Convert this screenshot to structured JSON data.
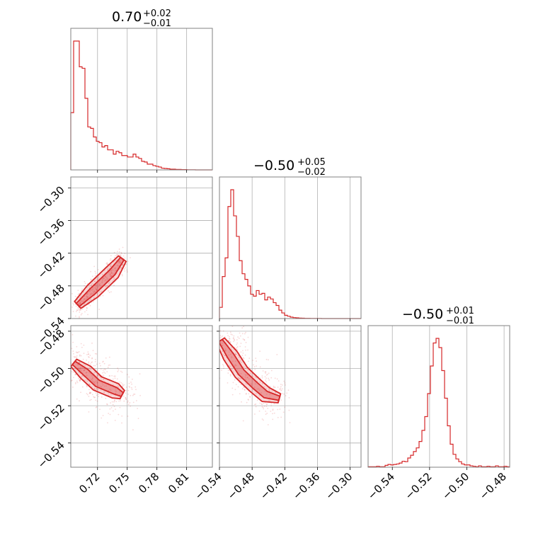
{
  "chart_data": {
    "type": "corner",
    "color": "#d62728",
    "parameters": [
      {
        "title_value": "0.70",
        "title_plus": "+0.02",
        "title_minus": "−0.01",
        "range": [
          0.693,
          0.836
        ],
        "ticks": [
          0.72,
          0.75,
          0.78,
          0.81
        ],
        "tick_labels": [
          "0.72",
          "0.75",
          "0.78",
          "0.81"
        ],
        "hist_edges_start": 0.693,
        "hist_edges_step": 0.00286,
        "hist_counts": [
          400,
          900,
          900,
          720,
          710,
          500,
          300,
          290,
          230,
          200,
          190,
          160,
          170,
          140,
          140,
          110,
          130,
          120,
          100,
          100,
          90,
          90,
          110,
          90,
          80,
          60,
          55,
          40,
          40,
          30,
          25,
          20,
          12,
          10,
          8,
          5,
          5,
          3,
          3,
          2,
          2,
          1,
          1,
          1,
          0,
          0,
          0,
          0,
          0,
          0
        ]
      },
      {
        "title_value": "−0.50",
        "title_plus": "+0.05",
        "title_minus": "−0.02",
        "range": [
          -0.54,
          -0.28
        ],
        "ticks": [
          -0.3,
          -0.36,
          -0.42,
          -0.48,
          -0.54
        ],
        "tick_labels": [
          "−0.30",
          "−0.36",
          "−0.42",
          "−0.48",
          "−0.54"
        ],
        "x_ticks": [
          -0.54,
          -0.48,
          -0.42,
          -0.36,
          -0.3
        ],
        "x_tick_labels": [
          "−0.54",
          "−0.48",
          "−0.42",
          "−0.36",
          "−0.30"
        ],
        "hist_edges_start": -0.54,
        "hist_edges_step": 0.0052,
        "hist_counts": [
          120,
          450,
          650,
          1200,
          1380,
          1100,
          880,
          620,
          480,
          420,
          350,
          260,
          240,
          300,
          260,
          270,
          200,
          230,
          210,
          170,
          140,
          90,
          60,
          35,
          25,
          15,
          10,
          8,
          5,
          4,
          2,
          2,
          1,
          1,
          1,
          1,
          0,
          0,
          0,
          0,
          0,
          0,
          0,
          0,
          0,
          0,
          0,
          0,
          0,
          0
        ]
      },
      {
        "title_value": "−0.50",
        "title_plus": "+0.01",
        "title_minus": "−0.01",
        "range": [
          -0.553,
          -0.477
        ],
        "ticks": [
          -0.48,
          -0.5,
          -0.52,
          -0.54
        ],
        "tick_labels": [
          "−0.48",
          "−0.50",
          "−0.52",
          "−0.54"
        ],
        "x_ticks": [
          -0.54,
          -0.52,
          -0.5,
          -0.48
        ],
        "x_tick_labels": [
          "−0.54",
          "−0.52",
          "−0.50",
          "−0.48"
        ],
        "hist_edges_start": -0.553,
        "hist_edges_step": 0.00152,
        "hist_counts": [
          5,
          5,
          5,
          10,
          5,
          5,
          20,
          30,
          25,
          30,
          35,
          45,
          65,
          60,
          100,
          130,
          170,
          210,
          280,
          400,
          550,
          800,
          1100,
          1350,
          1400,
          1300,
          1050,
          750,
          450,
          250,
          140,
          90,
          60,
          35,
          25,
          25,
          15,
          10,
          5,
          15,
          5,
          5,
          10,
          5,
          5,
          15,
          5,
          5,
          10,
          5
        ]
      }
    ],
    "pairs": [
      {
        "x_param": 0,
        "y_param": 1,
        "samples_center": [
          [
            0.7,
            -0.515
          ],
          [
            0.715,
            -0.49
          ],
          [
            0.735,
            -0.455
          ],
          [
            0.745,
            -0.43
          ]
        ],
        "spread": 0.009
      },
      {
        "x_param": 0,
        "y_param": 2,
        "samples_center": [
          [
            0.696,
            -0.497
          ],
          [
            0.708,
            -0.502
          ],
          [
            0.72,
            -0.508
          ],
          [
            0.738,
            -0.512
          ],
          [
            0.745,
            -0.514
          ]
        ],
        "spread": 0.0055
      },
      {
        "x_param": 1,
        "y_param": 2,
        "samples_center": [
          [
            -0.538,
            -0.485
          ],
          [
            -0.52,
            -0.493
          ],
          [
            -0.5,
            -0.502
          ],
          [
            -0.475,
            -0.509
          ],
          [
            -0.455,
            -0.514
          ],
          [
            -0.43,
            -0.516
          ]
        ],
        "spread": 0.0055
      }
    ]
  }
}
